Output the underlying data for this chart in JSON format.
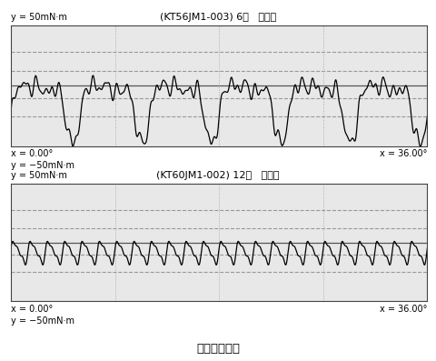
{
  "title1": "(KT56JM1-003) 6极   无微调",
  "title2": "(KT60JM1-002) 12极   有微调",
  "bottom_title": "齿槽转矩比较",
  "y_top_label": "y = 50mN·m",
  "y_mid_label1": "y = −50mN·m",
  "y_mid_label2": "y = 50mN·m",
  "y_bot_label": "y = −50mN·m",
  "x_left": "x = 0.00°",
  "x_right": "x = 36.00°",
  "bg_color": "#ffffff",
  "panel_bg": "#e8e8e8",
  "grid_dash_color": "#999999",
  "grid_dot_color": "#aaaaaa",
  "line_color": "#000000",
  "spine_color": "#444444"
}
